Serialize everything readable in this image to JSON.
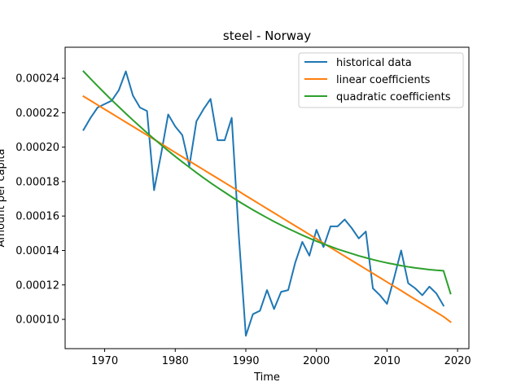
{
  "chart_data": {
    "type": "line",
    "title": "steel - Norway",
    "xlabel": "Time",
    "ylabel": "Amount per capita",
    "xlim": [
      1964.4,
      2021.6
    ],
    "ylim": [
      8.3e-05,
      0.000258
    ],
    "xticks": [
      1970,
      1980,
      1990,
      2000,
      2010,
      2020
    ],
    "xtick_labels": [
      "1970",
      "1980",
      "1990",
      "2000",
      "2010",
      "2020"
    ],
    "yticks": [
      0.0001,
      0.00012,
      0.00014,
      0.00016,
      0.00018,
      0.0002,
      0.00022,
      0.00024
    ],
    "ytick_labels": [
      "0.00010",
      "0.00012",
      "0.00014",
      "0.00016",
      "0.00018",
      "0.00020",
      "0.00022",
      "0.00024"
    ],
    "grid": false,
    "legend_position": "upper-right",
    "x": [
      1967,
      1968,
      1969,
      1970,
      1971,
      1972,
      1973,
      1974,
      1975,
      1976,
      1977,
      1978,
      1979,
      1980,
      1981,
      1982,
      1983,
      1984,
      1985,
      1986,
      1987,
      1988,
      1989,
      1990,
      1991,
      1992,
      1993,
      1994,
      1995,
      1996,
      1997,
      1998,
      1999,
      2000,
      2001,
      2002,
      2003,
      2004,
      2005,
      2006,
      2007,
      2008,
      2009,
      2010,
      2011,
      2012,
      2013,
      2014,
      2015,
      2016,
      2017,
      2018,
      2019
    ],
    "series": [
      {
        "name": "historical data",
        "color": "#1f77b4",
        "values": [
          0.00021,
          0.000217,
          0.000223,
          0.000225,
          0.000227,
          0.000233,
          0.000244,
          0.00023,
          0.000223,
          0.000221,
          0.000175,
          0.000196,
          0.000219,
          0.000212,
          0.000207,
          0.000189,
          0.000215,
          0.000222,
          0.000228,
          0.000204,
          0.000204,
          0.000217,
          0.000149,
          9.05e-05,
          0.000103,
          0.000105,
          0.000117,
          0.000106,
          0.000116,
          0.000117,
          0.000133,
          0.000145,
          0.000137,
          0.000152,
          0.000142,
          0.000154,
          0.000154,
          0.000158,
          0.000153,
          0.000147,
          0.000151,
          0.000118,
          0.000114,
          0.000109,
          0.000124,
          0.00014,
          0.000121,
          0.000118,
          0.000114,
          0.000119,
          0.000115,
          0.000108,
          null
        ]
      },
      {
        "name": "linear coefficients",
        "color": "#ff7f0e",
        "values": [
          0.0002295,
          0.000227,
          0.0002245,
          0.000222,
          0.0002195,
          0.000217,
          0.0002145,
          0.000212,
          0.0002095,
          0.000207,
          0.0002045,
          0.000202,
          0.0001994,
          0.0001969,
          0.0001944,
          0.0001919,
          0.0001894,
          0.0001869,
          0.0001844,
          0.0001819,
          0.0001794,
          0.0001769,
          0.0001744,
          0.0001718,
          0.0001693,
          0.0001668,
          0.0001643,
          0.0001618,
          0.0001593,
          0.0001568,
          0.0001543,
          0.0001518,
          0.0001493,
          0.0001468,
          0.0001442,
          0.0001417,
          0.0001392,
          0.0001367,
          0.0001342,
          0.0001317,
          0.0001292,
          0.0001267,
          0.0001242,
          0.0001217,
          0.0001192,
          0.0001167,
          0.0001141,
          0.0001116,
          0.0001091,
          0.0001066,
          0.0001041,
          0.0001016,
          9.85e-05
        ]
      },
      {
        "name": "quadratic coefficients",
        "color": "#2ca02c",
        "values": [
          0.000244,
          0.0002397,
          0.0002355,
          0.0002314,
          0.0002273,
          0.0002234,
          0.0002195,
          0.0002157,
          0.000212,
          0.0002083,
          0.0002048,
          0.0002013,
          0.0001979,
          0.0001946,
          0.0001914,
          0.0001883,
          0.0001852,
          0.0001822,
          0.0001793,
          0.0001765,
          0.0001738,
          0.0001711,
          0.0001685,
          0.000166,
          0.0001636,
          0.0001613,
          0.000159,
          0.0001568,
          0.0001547,
          0.0001527,
          0.0001508,
          0.0001489,
          0.0001471,
          0.0001454,
          0.0001438,
          0.0001423,
          0.0001408,
          0.0001395,
          0.0001382,
          0.0001369,
          0.0001358,
          0.0001347,
          0.0001337,
          0.0001328,
          0.000132,
          0.0001312,
          0.0001305,
          0.0001299,
          0.0001294,
          0.0001289,
          0.0001285,
          0.0001282,
          0.000115
        ]
      }
    ]
  }
}
